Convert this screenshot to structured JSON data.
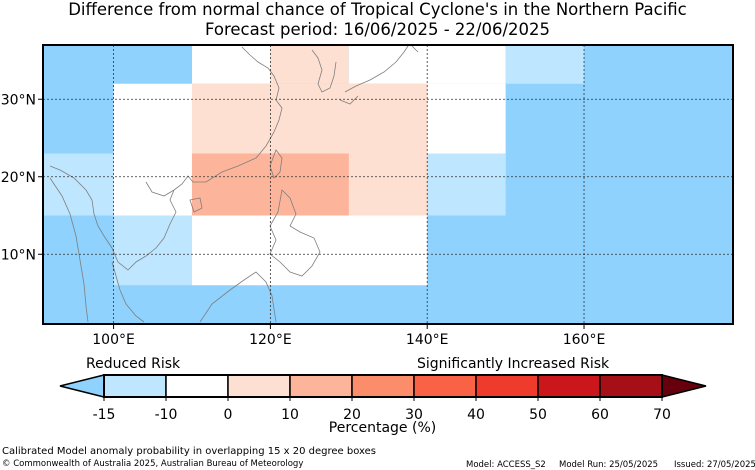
{
  "header": {
    "title_line1": "Difference from normal chance of Tropical Cyclone's in the Northern Pacific",
    "title_line2": "Forecast period: 16/06/2025 - 22/06/2025"
  },
  "map": {
    "lon_range": [
      91,
      179
    ],
    "lat_range": [
      1,
      37
    ],
    "lon_ticks": [
      100,
      120,
      140,
      160
    ],
    "lon_tick_labels": [
      "100°E",
      "120°E",
      "140°E",
      "160°E"
    ],
    "lat_ticks": [
      10,
      20,
      30
    ],
    "lat_tick_labels": [
      "10°N",
      "20°N",
      "30°N"
    ],
    "background_color": "#8ed2fd",
    "land_outline_color": "#7f7f7f",
    "cells": [
      {
        "lon0": 91,
        "lon1": 110,
        "lat0": 32,
        "lat1": 37,
        "color": "#8ed2fd"
      },
      {
        "lon0": 110,
        "lon1": 120,
        "lat0": 32,
        "lat1": 37,
        "color": "#ffffff"
      },
      {
        "lon0": 120,
        "lon1": 130,
        "lat0": 32,
        "lat1": 37,
        "color": "#fee0d2"
      },
      {
        "lon0": 130,
        "lon1": 150,
        "lat0": 32,
        "lat1": 37,
        "color": "#ffffff"
      },
      {
        "lon0": 150,
        "lon1": 160,
        "lat0": 32,
        "lat1": 37,
        "color": "#bfe6ff"
      },
      {
        "lon0": 100,
        "lon1": 110,
        "lat0": 15,
        "lat1": 32,
        "color": "#ffffff"
      },
      {
        "lon0": 110,
        "lon1": 140,
        "lat0": 15,
        "lat1": 32,
        "color": "#fee0d2"
      },
      {
        "lon0": 140,
        "lon1": 150,
        "lat0": 20,
        "lat1": 32,
        "color": "#ffffff"
      },
      {
        "lon0": 140,
        "lon1": 150,
        "lat0": 15,
        "lat1": 23,
        "color": "#bfe6ff"
      },
      {
        "lon0": 91,
        "lon1": 100,
        "lat0": 15,
        "lat1": 23,
        "color": "#bfe6ff"
      },
      {
        "lon0": 110,
        "lon1": 130,
        "lat0": 15,
        "lat1": 23,
        "color": "#fcb49a"
      },
      {
        "lon0": 100,
        "lon1": 110,
        "lat0": 6,
        "lat1": 15,
        "color": "#bfe6ff"
      },
      {
        "lon0": 110,
        "lon1": 140,
        "lat0": 6,
        "lat1": 15,
        "color": "#ffffff"
      }
    ]
  },
  "colorbar": {
    "ticks": [
      "-15",
      "-10",
      "0",
      "10",
      "20",
      "30",
      "40",
      "50",
      "60",
      "70"
    ],
    "colors": [
      "#bfe6ff",
      "#ffffff",
      "#fee0d2",
      "#fcb49a",
      "#fc8d6a",
      "#f96245",
      "#ef3b2c",
      "#cb171c",
      "#a50f15"
    ],
    "under_color": "#8ed2fd",
    "over_color": "#67000d",
    "label_left": "Reduced Risk",
    "label_right": "Significantly Increased Risk",
    "axis_label": "Percentage (%)"
  },
  "footer": {
    "description": "Calibrated Model anomaly probability in overlapping 15 x 20 degree boxes",
    "copyright": "© Commonwealth of Australia 2025, Australian Bureau of Meteorology",
    "model": "Model: ACCESS_S2",
    "model_run": "Model Run: 25/05/2025",
    "issued": "Issued: 27/05/2025"
  }
}
